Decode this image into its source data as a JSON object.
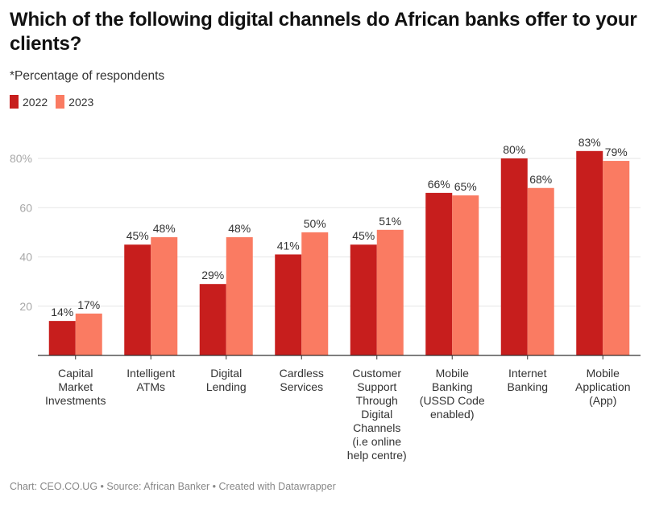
{
  "header": {
    "title": "Which of the following digital channels do African banks offer to your clients?",
    "subtitle": "*Percentage of respondents"
  },
  "legend": [
    {
      "label": "2022",
      "color": "#c71e1d"
    },
    {
      "label": "2023",
      "color": "#fa7b62"
    }
  ],
  "footer": {
    "text": "Chart: CEO.CO.UG • Source: African Banker • Created with Datawrapper"
  },
  "chart_data": {
    "type": "bar",
    "title": "Which of the following digital channels do African banks offer to your clients?",
    "subtitle": "*Percentage of respondents",
    "xlabel": "",
    "ylabel": "",
    "ylim": [
      0,
      85
    ],
    "yticks": [
      20,
      40,
      60,
      80
    ],
    "ytick_labels": [
      "20",
      "40",
      "60",
      "80%"
    ],
    "grid": true,
    "legend_position": "top-left",
    "categories": [
      [
        "Capital",
        "Market",
        "Investments"
      ],
      [
        "Intelligent",
        "ATMs"
      ],
      [
        "Digital",
        "Lending"
      ],
      [
        "Cardless",
        "Services"
      ],
      [
        "Customer",
        "Support",
        "Through",
        "Digital",
        "Channels",
        "(i.e online",
        "help centre)"
      ],
      [
        "Mobile",
        "Banking",
        "(USSD Code",
        "enabled)"
      ],
      [
        "Internet",
        "Banking"
      ],
      [
        "Mobile",
        "Application",
        "(App)"
      ]
    ],
    "series": [
      {
        "name": "2022",
        "color": "#c71e1d",
        "values": [
          14,
          45,
          29,
          41,
          45,
          66,
          80,
          83
        ]
      },
      {
        "name": "2023",
        "color": "#fa7b62",
        "values": [
          17,
          48,
          48,
          50,
          51,
          65,
          68,
          79
        ]
      }
    ],
    "value_suffix": "%"
  }
}
